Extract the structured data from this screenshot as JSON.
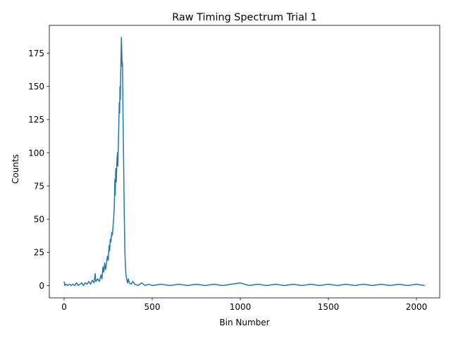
{
  "chart_data": {
    "type": "line",
    "title": "Raw Timing Spectrum Trial 1",
    "xlabel": "Bin Number",
    "ylabel": "Counts",
    "xlim": [
      -84,
      2132
    ],
    "ylim": [
      -9.3,
      196
    ],
    "x_ticks": [
      0,
      500,
      1000,
      1500,
      2000
    ],
    "y_ticks": [
      0,
      25,
      50,
      75,
      100,
      125,
      150,
      175
    ],
    "grid": false,
    "legend": "none",
    "series": [
      {
        "color": "#1f77b4",
        "points": [
          [
            0,
            3
          ],
          [
            4,
            0
          ],
          [
            10,
            1
          ],
          [
            20,
            0
          ],
          [
            30,
            1
          ],
          [
            40,
            0
          ],
          [
            50,
            1
          ],
          [
            60,
            0
          ],
          [
            70,
            2
          ],
          [
            80,
            0
          ],
          [
            90,
            1
          ],
          [
            100,
            2
          ],
          [
            110,
            0
          ],
          [
            120,
            2
          ],
          [
            130,
            1
          ],
          [
            140,
            3
          ],
          [
            150,
            1
          ],
          [
            160,
            4
          ],
          [
            170,
            2
          ],
          [
            176,
            9
          ],
          [
            180,
            3
          ],
          [
            190,
            5
          ],
          [
            200,
            3
          ],
          [
            210,
            8
          ],
          [
            215,
            5
          ],
          [
            220,
            14
          ],
          [
            225,
            10
          ],
          [
            230,
            17
          ],
          [
            235,
            12
          ],
          [
            240,
            16
          ],
          [
            245,
            22
          ],
          [
            250,
            19
          ],
          [
            255,
            30
          ],
          [
            258,
            26
          ],
          [
            262,
            35
          ],
          [
            266,
            33
          ],
          [
            270,
            40
          ],
          [
            274,
            38
          ],
          [
            278,
            45
          ],
          [
            282,
            52
          ],
          [
            285,
            60
          ],
          [
            288,
            80
          ],
          [
            290,
            68
          ],
          [
            293,
            88
          ],
          [
            296,
            78
          ],
          [
            300,
            95
          ],
          [
            303,
            100
          ],
          [
            305,
            90
          ],
          [
            308,
            108
          ],
          [
            311,
            125
          ],
          [
            313,
            138
          ],
          [
            315,
            130
          ],
          [
            317,
            150
          ],
          [
            319,
            140
          ],
          [
            321,
            160
          ],
          [
            323,
            172
          ],
          [
            325,
            187
          ],
          [
            327,
            178
          ],
          [
            329,
            165
          ],
          [
            331,
            168
          ],
          [
            333,
            145
          ],
          [
            335,
            120
          ],
          [
            337,
            100
          ],
          [
            339,
            80
          ],
          [
            341,
            58
          ],
          [
            343,
            40
          ],
          [
            345,
            25
          ],
          [
            348,
            15
          ],
          [
            351,
            8
          ],
          [
            355,
            5
          ],
          [
            360,
            2
          ],
          [
            365,
            5
          ],
          [
            370,
            2
          ],
          [
            380,
            1
          ],
          [
            390,
            3
          ],
          [
            400,
            1
          ],
          [
            420,
            0
          ],
          [
            440,
            2
          ],
          [
            460,
            0
          ],
          [
            480,
            1
          ],
          [
            500,
            0
          ],
          [
            550,
            1
          ],
          [
            600,
            0
          ],
          [
            650,
            1
          ],
          [
            700,
            0
          ],
          [
            750,
            1
          ],
          [
            800,
            0
          ],
          [
            850,
            1
          ],
          [
            900,
            0
          ],
          [
            950,
            1
          ],
          [
            1000,
            2
          ],
          [
            1050,
            0
          ],
          [
            1100,
            1
          ],
          [
            1150,
            0
          ],
          [
            1200,
            1
          ],
          [
            1250,
            0
          ],
          [
            1300,
            1
          ],
          [
            1350,
            0
          ],
          [
            1400,
            1
          ],
          [
            1450,
            0
          ],
          [
            1500,
            1
          ],
          [
            1550,
            0
          ],
          [
            1600,
            1
          ],
          [
            1650,
            0
          ],
          [
            1700,
            1
          ],
          [
            1750,
            0
          ],
          [
            1800,
            1
          ],
          [
            1850,
            0
          ],
          [
            1900,
            1
          ],
          [
            1950,
            0
          ],
          [
            2000,
            1
          ],
          [
            2047,
            0
          ]
        ]
      }
    ]
  }
}
